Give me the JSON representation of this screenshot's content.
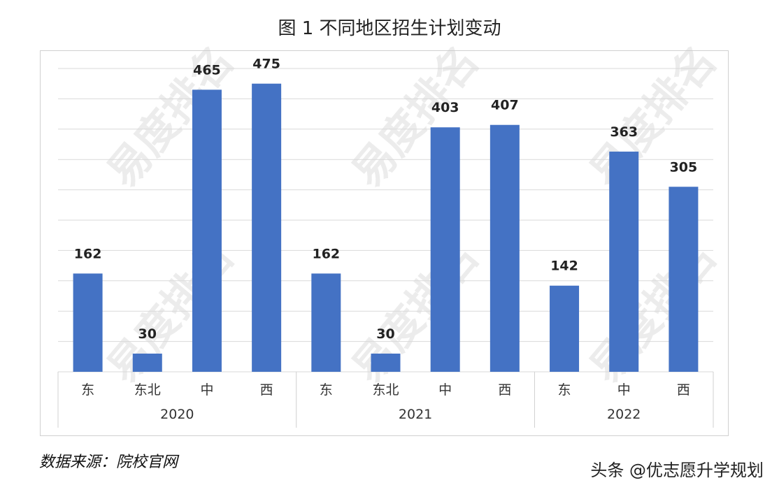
{
  "chart_data": {
    "type": "bar",
    "title": "图 1  不同地区招生计划变动",
    "groups": [
      {
        "label": "2020",
        "categories": [
          "东",
          "东北",
          "中",
          "西"
        ],
        "values": [
          162,
          30,
          465,
          475
        ]
      },
      {
        "label": "2021",
        "categories": [
          "东",
          "东北",
          "中",
          "西"
        ],
        "values": [
          162,
          30,
          403,
          407
        ]
      },
      {
        "label": "2022",
        "categories": [
          "东",
          "中",
          "西"
        ],
        "values": [
          142,
          363,
          305
        ]
      }
    ],
    "ylim": [
      0,
      500
    ],
    "grid": true,
    "bar_color": "#4472C4",
    "data_labels": true
  },
  "source": "数据来源：院校官网",
  "credit": "头条 @优志愿升学规划",
  "watermark": "易度排名 EDU Ranking.cn"
}
